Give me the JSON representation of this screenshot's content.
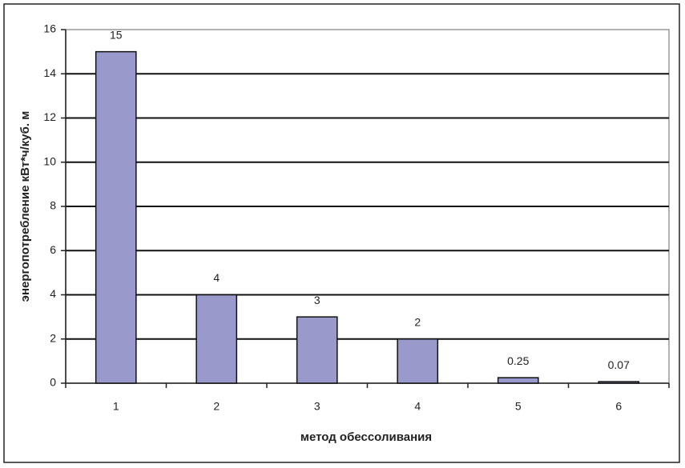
{
  "chart_data": {
    "type": "bar",
    "x_label": "метод обессоливания",
    "y_label": "энергопотребление кВт*ч/куб. м",
    "categories": [
      "1",
      "2",
      "3",
      "4",
      "5",
      "6"
    ],
    "values": [
      15,
      4,
      3,
      2,
      0.25,
      0.07
    ],
    "color": "#9999cc",
    "ylim": [
      0,
      16
    ],
    "yticks": [
      0,
      2,
      4,
      6,
      8,
      10,
      12,
      14,
      16
    ],
    "grid": true
  }
}
